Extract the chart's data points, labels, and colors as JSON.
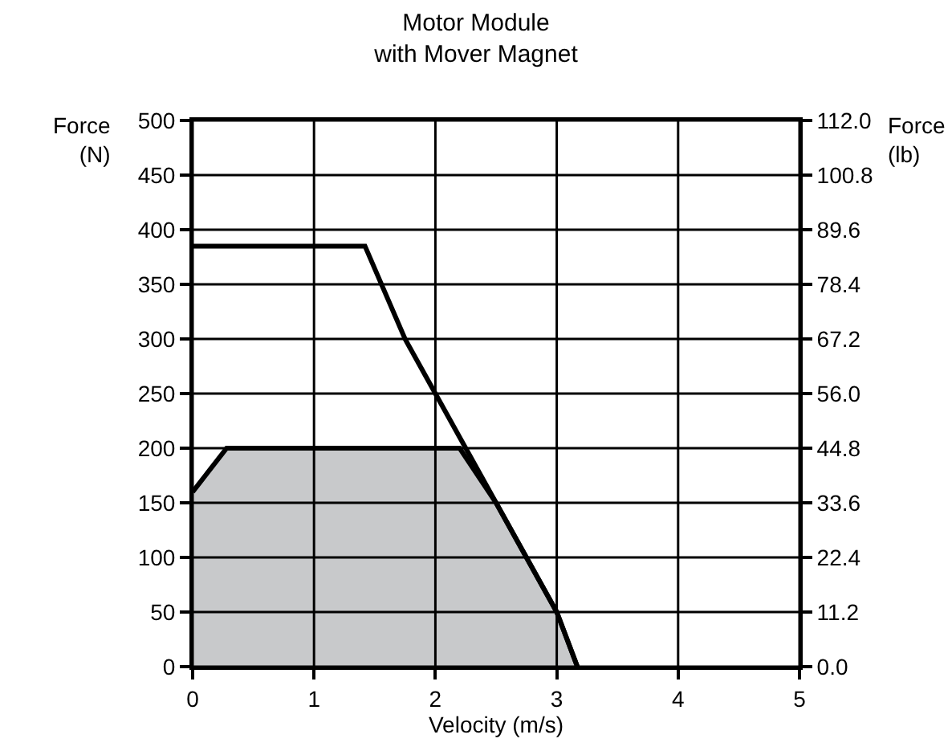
{
  "chart_data": {
    "type": "line",
    "title": "Motor Module\nwith Mover Magnet",
    "xlabel": "Velocity (m/s)",
    "ylabel": "Force\n(N)",
    "y2label": "Force\n(lb)",
    "series": [
      {
        "color": "#000000",
        "x": [
          0,
          1.42,
          1.75,
          2.0,
          2.5,
          3.0,
          3.17
        ],
        "values": [
          385,
          385,
          300,
          250,
          150,
          50,
          0
        ]
      },
      {
        "type": "area",
        "color": "#c8c9cb",
        "x": [
          0,
          0.28,
          2.2,
          2.5,
          3.0,
          3.17
        ],
        "values": [
          160,
          200,
          200,
          150,
          50,
          0
        ]
      }
    ],
    "xlim": [
      0,
      5
    ],
    "xticks": [
      0,
      1,
      2,
      3,
      4,
      5
    ],
    "ylim": [
      0,
      500
    ],
    "yticks": [
      0,
      50,
      100,
      150,
      200,
      250,
      300,
      350,
      400,
      450,
      500
    ],
    "y2lim": [
      0,
      112
    ],
    "y2ticks": [
      {
        "value": 0,
        "label": "0.0"
      },
      {
        "value": 11.2,
        "label": "11.2"
      },
      {
        "value": 22.4,
        "label": "22.4"
      },
      {
        "value": 33.6,
        "label": "33.6"
      },
      {
        "value": 44.8,
        "label": "44.8"
      },
      {
        "value": 56,
        "label": "56.0"
      },
      {
        "value": 67.2,
        "label": "67.2"
      },
      {
        "value": 78.4,
        "label": "78.4"
      },
      {
        "value": 89.6,
        "label": "89.6"
      },
      {
        "value": 100.8,
        "label": "100.8"
      },
      {
        "value": 112,
        "label": "112.0"
      }
    ],
    "grid": true,
    "line_style": "solid",
    "marker": "none"
  }
}
